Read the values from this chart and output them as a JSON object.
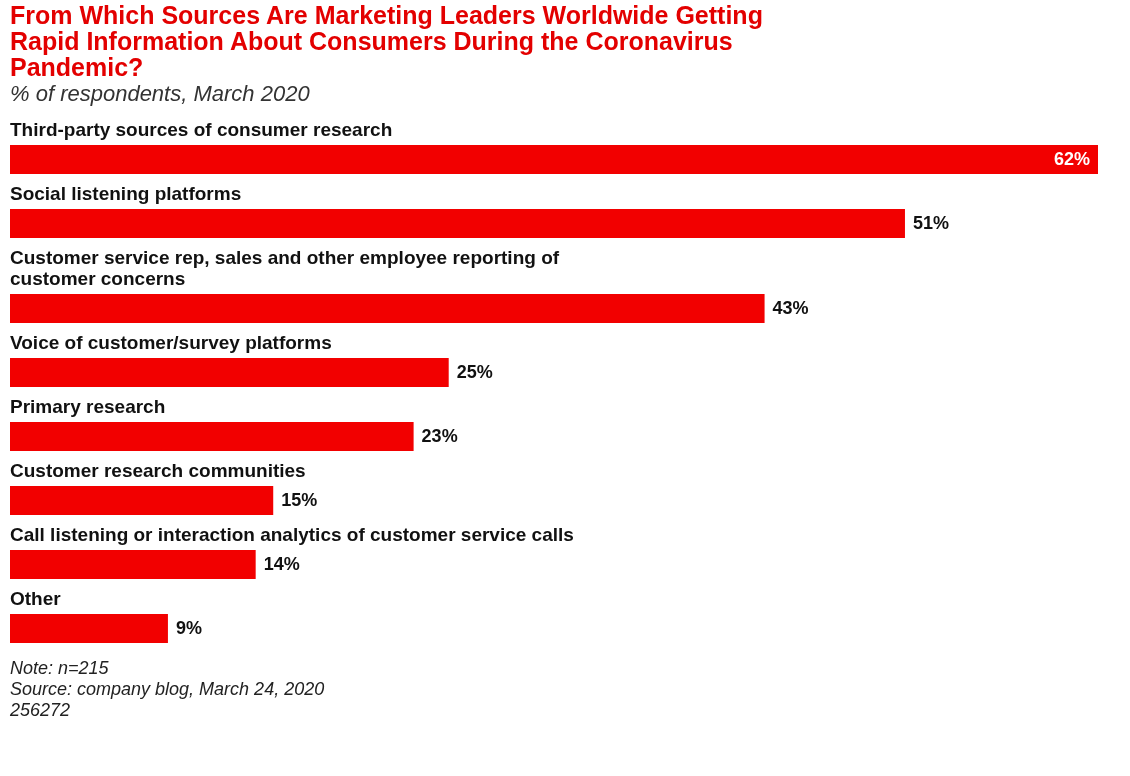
{
  "chart_data": {
    "type": "bar",
    "orientation": "horizontal",
    "title": "From Which Sources Are Marketing Leaders Worldwide Getting Rapid Information About Consumers During the Coronavirus Pandemic?",
    "subtitle": "% of respondents, March 2020",
    "categories": [
      "Third-party sources of consumer research",
      "Social listening platforms",
      "Customer service rep, sales and other employee reporting of customer concerns",
      "Voice of customer/survey platforms",
      "Primary research",
      "Customer research communities",
      "Call listening or interaction analytics of customer service calls",
      "Other"
    ],
    "values": [
      62,
      51,
      43,
      25,
      23,
      15,
      14,
      9
    ],
    "value_labels": [
      "62%",
      "51%",
      "43%",
      "25%",
      "23%",
      "15%",
      "14%",
      "9%"
    ],
    "color": "#f20000",
    "annotations": [
      "Note: n=215",
      "Source: company blog, March 24, 2020",
      "256272"
    ]
  }
}
